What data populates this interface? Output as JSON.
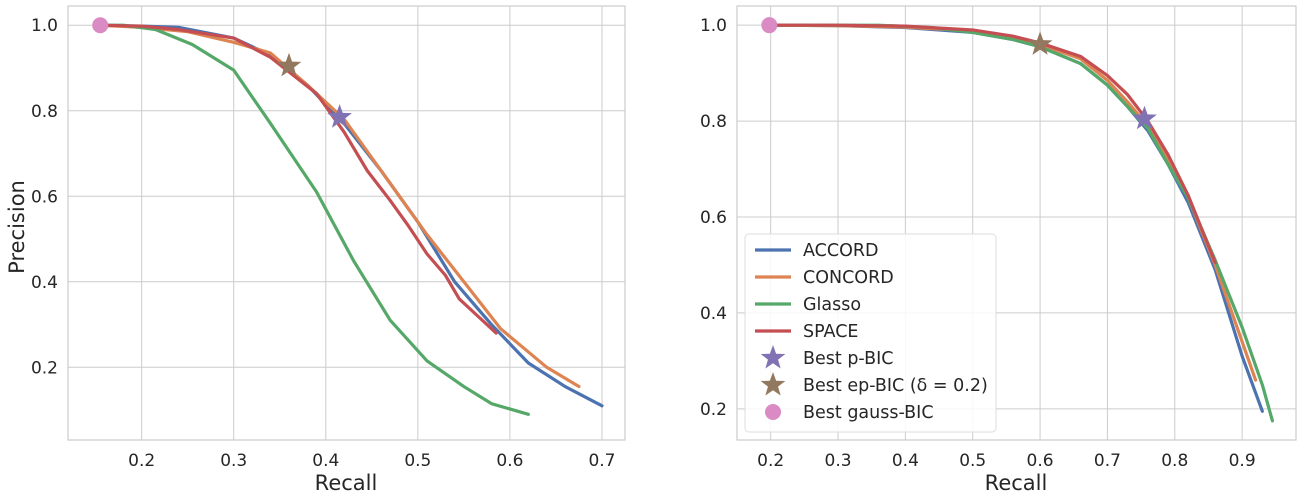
{
  "chart_data": [
    {
      "type": "line",
      "xlabel": "Recall",
      "ylabel": "Precision",
      "xlim": [
        0.12,
        0.725
      ],
      "ylim": [
        0.03,
        1.045
      ],
      "xticks": [
        0.2,
        0.3,
        0.4,
        0.5,
        0.6,
        0.7
      ],
      "yticks": [
        0.2,
        0.4,
        0.6,
        0.8,
        1.0
      ],
      "xtick_labels": [
        "0.2",
        "0.3",
        "0.4",
        "0.5",
        "0.6",
        "0.7"
      ],
      "ytick_labels": [
        "0.2",
        "0.4",
        "0.6",
        "0.8",
        "1.0"
      ],
      "grid": true,
      "series": [
        {
          "name": "ACCORD",
          "color": "#4c72b0",
          "x": [
            0.155,
            0.2,
            0.24,
            0.3,
            0.34,
            0.38,
            0.42,
            0.46,
            0.5,
            0.54,
            0.58,
            0.62,
            0.66,
            0.7
          ],
          "y": [
            1.0,
            0.998,
            0.995,
            0.97,
            0.93,
            0.86,
            0.77,
            0.66,
            0.54,
            0.4,
            0.3,
            0.21,
            0.155,
            0.11
          ]
        },
        {
          "name": "CONCORD",
          "color": "#dd8452",
          "x": [
            0.155,
            0.2,
            0.25,
            0.3,
            0.34,
            0.38,
            0.42,
            0.46,
            0.51,
            0.55,
            0.59,
            0.64,
            0.675
          ],
          "y": [
            1.0,
            0.995,
            0.985,
            0.96,
            0.935,
            0.86,
            0.78,
            0.66,
            0.51,
            0.4,
            0.29,
            0.2,
            0.155
          ]
        },
        {
          "name": "Glasso",
          "color": "#55a868",
          "x": [
            0.155,
            0.18,
            0.215,
            0.255,
            0.3,
            0.34,
            0.39,
            0.43,
            0.47,
            0.51,
            0.55,
            0.58,
            0.62
          ],
          "y": [
            1.0,
            1.0,
            0.99,
            0.955,
            0.895,
            0.77,
            0.61,
            0.45,
            0.31,
            0.215,
            0.155,
            0.115,
            0.09
          ]
        },
        {
          "name": "SPACE",
          "color": "#c44e52",
          "x": [
            0.155,
            0.2,
            0.24,
            0.3,
            0.34,
            0.39,
            0.42,
            0.445,
            0.47,
            0.49,
            0.51,
            0.53,
            0.545,
            0.565,
            0.585
          ],
          "y": [
            1.0,
            0.998,
            0.99,
            0.97,
            0.925,
            0.84,
            0.75,
            0.66,
            0.59,
            0.53,
            0.465,
            0.415,
            0.36,
            0.32,
            0.28
          ]
        }
      ],
      "markers": [
        {
          "name": "Best p-BIC",
          "shape": "star",
          "color": "#8172b3",
          "x": 0.415,
          "y": 0.785
        },
        {
          "name": "Best ep-BIC ($\\delta = 0.2$)",
          "shape": "star",
          "color": "#937860",
          "x": 0.36,
          "y": 0.905
        },
        {
          "name": "Best gauss-BIC",
          "shape": "circle",
          "color": "#da8bc3",
          "x": 0.155,
          "y": 1.0
        }
      ]
    },
    {
      "type": "line",
      "xlabel": "Recall",
      "ylabel": "",
      "xlim": [
        0.15,
        0.98
      ],
      "ylim": [
        0.135,
        1.04
      ],
      "xticks": [
        0.2,
        0.3,
        0.4,
        0.5,
        0.6,
        0.7,
        0.8,
        0.9
      ],
      "yticks": [
        0.2,
        0.4,
        0.6,
        0.8,
        1.0
      ],
      "xtick_labels": [
        "0.2",
        "0.3",
        "0.4",
        "0.5",
        "0.6",
        "0.7",
        "0.8",
        "0.9"
      ],
      "ytick_labels": [
        "0.2",
        "0.4",
        "0.6",
        "0.8",
        "1.0"
      ],
      "grid": true,
      "legend_position": "lower-left",
      "series": [
        {
          "name": "ACCORD",
          "color": "#4c72b0",
          "x": [
            0.2,
            0.3,
            0.4,
            0.5,
            0.56,
            0.6,
            0.66,
            0.7,
            0.73,
            0.76,
            0.79,
            0.82,
            0.86,
            0.9,
            0.93
          ],
          "y": [
            1.0,
            0.999,
            0.995,
            0.985,
            0.97,
            0.955,
            0.92,
            0.875,
            0.83,
            0.78,
            0.71,
            0.63,
            0.49,
            0.31,
            0.195
          ]
        },
        {
          "name": "CONCORD",
          "color": "#dd8452",
          "x": [
            0.2,
            0.3,
            0.4,
            0.5,
            0.56,
            0.6,
            0.66,
            0.7,
            0.73,
            0.76,
            0.79,
            0.82,
            0.86,
            0.9,
            0.92
          ],
          "y": [
            1.0,
            0.999,
            0.996,
            0.988,
            0.973,
            0.96,
            0.93,
            0.885,
            0.84,
            0.79,
            0.72,
            0.64,
            0.5,
            0.34,
            0.26
          ]
        },
        {
          "name": "Glasso",
          "color": "#55a868",
          "x": [
            0.2,
            0.36,
            0.44,
            0.5,
            0.56,
            0.6,
            0.66,
            0.7,
            0.73,
            0.76,
            0.79,
            0.82,
            0.86,
            0.9,
            0.93,
            0.945
          ],
          "y": [
            1.0,
            1.0,
            0.995,
            0.985,
            0.97,
            0.955,
            0.92,
            0.875,
            0.83,
            0.785,
            0.71,
            0.64,
            0.51,
            0.37,
            0.25,
            0.175
          ]
        },
        {
          "name": "SPACE",
          "color": "#c44e52",
          "x": [
            0.2,
            0.3,
            0.4,
            0.5,
            0.56,
            0.6,
            0.66,
            0.7,
            0.73,
            0.76,
            0.79,
            0.82,
            0.86
          ],
          "y": [
            1.0,
            1.0,
            0.998,
            0.99,
            0.977,
            0.963,
            0.935,
            0.895,
            0.855,
            0.8,
            0.73,
            0.645,
            0.505
          ]
        }
      ],
      "markers": [
        {
          "name": "Best p-BIC",
          "shape": "star",
          "color": "#8172b3",
          "x": 0.755,
          "y": 0.805
        },
        {
          "name": "Best ep-BIC ($\\delta = 0.2$)",
          "shape": "star",
          "color": "#937860",
          "x": 0.6,
          "y": 0.96
        },
        {
          "name": "Best gauss-BIC",
          "shape": "circle",
          "color": "#da8bc3",
          "x": 0.198,
          "y": 1.0
        }
      ]
    }
  ],
  "legend": {
    "entries": [
      {
        "label": "ACCORD",
        "kind": "line",
        "color": "#4c72b0"
      },
      {
        "label": "CONCORD",
        "kind": "line",
        "color": "#dd8452"
      },
      {
        "label": "Glasso",
        "kind": "line",
        "color": "#55a868"
      },
      {
        "label": "SPACE",
        "kind": "line",
        "color": "#c44e52"
      },
      {
        "label": "Best p-BIC",
        "kind": "star",
        "color": "#8172b3"
      },
      {
        "label": "Best ep-BIC (δ = 0.2)",
        "kind": "star",
        "color": "#937860"
      },
      {
        "label": "Best gauss-BIC",
        "kind": "circle",
        "color": "#da8bc3"
      }
    ]
  }
}
